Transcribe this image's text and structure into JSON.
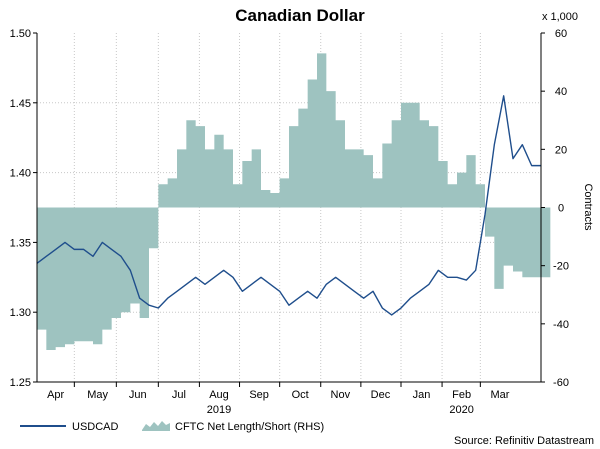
{
  "chart_data": {
    "type": "line",
    "title": "Canadian Dollar",
    "source": "Source: Refinitiv Datastream",
    "left_axis": {
      "ylim": [
        1.25,
        1.5
      ],
      "ticks": [
        "1.25",
        "1.30",
        "1.35",
        "1.40",
        "1.45",
        "1.50"
      ],
      "tick_values": [
        1.25,
        1.3,
        1.35,
        1.4,
        1.45,
        1.5
      ]
    },
    "right_axis": {
      "ylim": [
        -60,
        60
      ],
      "ticks": [
        "-60",
        "-40",
        "-20",
        "0",
        "20",
        "40",
        "60"
      ],
      "tick_values": [
        -60,
        -40,
        -20,
        0,
        20,
        40,
        60
      ],
      "unit": "x 1,000",
      "label": "Contracts"
    },
    "x_axis": {
      "month_labels": [
        "Apr",
        "May",
        "Jun",
        "Jul",
        "Aug",
        "Sep",
        "Oct",
        "Nov",
        "Dec",
        "Jan",
        "Feb",
        "Mar"
      ],
      "month_label_weeks": [
        2,
        6.5,
        10.8,
        15.2,
        19.5,
        23.8,
        28.2,
        32.5,
        36.8,
        41.2,
        45.5,
        49.6
      ],
      "month_boundaries": [
        4,
        8.5,
        13,
        17.4,
        21.7,
        26,
        30.4,
        34.7,
        39,
        43.4,
        47.5
      ],
      "year_labels": [
        "2019",
        "2020"
      ],
      "year_label_weeks": [
        19.5,
        45.5
      ],
      "range": [
        0,
        54
      ]
    },
    "grid": true,
    "legend": "bottom-left",
    "series": [
      {
        "name": "USDCAD",
        "axis": "left",
        "color": "#1f4e8c",
        "x": [
          0,
          1,
          2,
          3,
          4,
          5,
          6,
          7,
          8,
          9,
          10,
          11,
          12,
          13,
          14,
          15,
          16,
          17,
          18,
          19,
          20,
          21,
          22,
          23,
          24,
          25,
          26,
          27,
          28,
          29,
          30,
          31,
          32,
          33,
          34,
          35,
          36,
          37,
          38,
          39,
          40,
          41,
          42,
          43,
          44,
          45,
          46,
          47,
          48,
          49,
          50,
          51,
          52,
          53,
          54
        ],
        "values": [
          1.335,
          1.34,
          1.345,
          1.35,
          1.345,
          1.345,
          1.34,
          1.35,
          1.345,
          1.34,
          1.33,
          1.31,
          1.305,
          1.303,
          1.31,
          1.315,
          1.32,
          1.325,
          1.32,
          1.325,
          1.33,
          1.325,
          1.315,
          1.32,
          1.325,
          1.32,
          1.315,
          1.305,
          1.31,
          1.315,
          1.31,
          1.32,
          1.325,
          1.32,
          1.315,
          1.31,
          1.315,
          1.303,
          1.298,
          1.303,
          1.31,
          1.315,
          1.32,
          1.33,
          1.325,
          1.325,
          1.323,
          1.33,
          1.37,
          1.42,
          1.455,
          1.41,
          1.42,
          1.405,
          1.405
        ]
      },
      {
        "name": "CFTC Net Length/Short (RHS)",
        "axis": "right",
        "color": "#9ec3c0",
        "x": [
          0,
          1,
          2,
          3,
          4,
          5,
          6,
          7,
          8,
          9,
          10,
          11,
          12,
          13,
          14,
          15,
          16,
          17,
          18,
          19,
          20,
          21,
          22,
          23,
          24,
          25,
          26,
          27,
          28,
          29,
          30,
          31,
          32,
          33,
          34,
          35,
          36,
          37,
          38,
          39,
          40,
          41,
          42,
          43,
          44,
          45,
          46,
          47,
          48,
          49,
          50,
          51,
          52,
          53,
          54
        ],
        "values": [
          -42,
          -49,
          -48,
          -47,
          -46,
          -46,
          -47,
          -42,
          -38,
          -36,
          -33,
          -38,
          -14,
          8,
          10,
          20,
          30,
          28,
          20,
          25,
          20,
          8,
          16,
          20,
          6,
          5,
          10,
          28,
          34,
          44,
          53,
          40,
          30,
          20,
          20,
          18,
          10,
          22,
          30,
          36,
          36,
          30,
          28,
          16,
          8,
          12,
          18,
          8,
          -10,
          -28,
          -20,
          -22,
          -24,
          -24,
          -24
        ]
      }
    ]
  }
}
